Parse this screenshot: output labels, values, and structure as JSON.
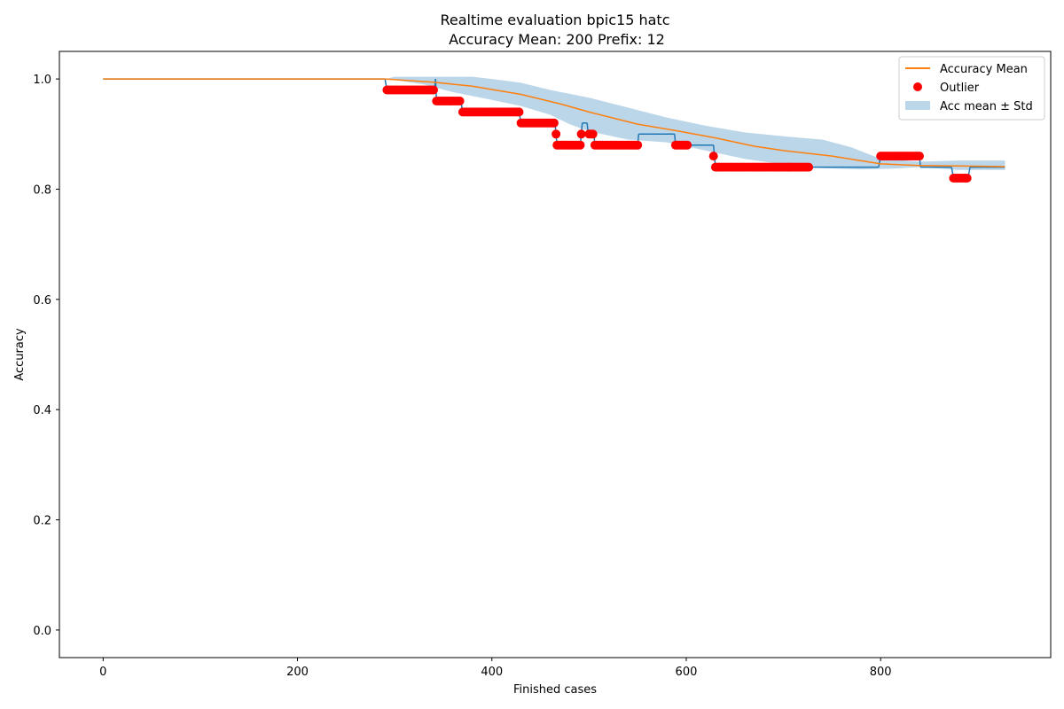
{
  "chart_data": {
    "type": "line",
    "title": "Realtime evaluation bpic15 hatc",
    "subtitle": "Accuracy Mean: 200 Prefix: 12",
    "xlabel": "Finished cases",
    "ylabel": "Accuracy",
    "xlim": [
      -45,
      975
    ],
    "ylim": [
      -0.05,
      1.05
    ],
    "xticks": [
      0,
      200,
      400,
      600,
      800
    ],
    "xtick_labels": [
      "0",
      "200",
      "400",
      "600",
      "800"
    ],
    "yticks": [
      0.0,
      0.2,
      0.4,
      0.6,
      0.8,
      1.0
    ],
    "ytick_labels": [
      "0.0",
      "0.2",
      "0.4",
      "0.6",
      "0.8",
      "1.0"
    ],
    "grid": false,
    "legend_position": "top-right",
    "colors": {
      "accuracy": "#1f77b4",
      "mean": "#ff7f0e",
      "outlier": "#ff0000",
      "band": "#1f77b4"
    },
    "series": [
      {
        "name": "",
        "kind": "step",
        "points": [
          [
            0,
            1.0
          ],
          [
            290,
            1.0
          ],
          [
            292,
            0.98
          ],
          [
            341,
            0.98
          ],
          [
            342,
            1.0
          ],
          [
            343,
            0.96
          ],
          [
            368,
            0.96
          ],
          [
            370,
            0.94
          ],
          [
            428,
            0.94
          ],
          [
            430,
            0.92
          ],
          [
            465,
            0.92
          ],
          [
            467,
            0.88
          ],
          [
            491,
            0.88
          ],
          [
            493,
            0.92
          ],
          [
            498,
            0.92
          ],
          [
            499,
            0.9
          ],
          [
            505,
            0.9
          ],
          [
            506,
            0.88
          ],
          [
            550,
            0.88
          ],
          [
            551,
            0.9
          ],
          [
            588,
            0.9
          ],
          [
            589,
            0.88
          ],
          [
            628,
            0.88
          ],
          [
            630,
            0.84
          ],
          [
            798,
            0.84
          ],
          [
            800,
            0.86
          ],
          [
            840,
            0.86
          ],
          [
            841,
            0.84
          ],
          [
            873,
            0.84
          ],
          [
            875,
            0.82
          ],
          [
            890,
            0.82
          ],
          [
            892,
            0.84
          ],
          [
            928,
            0.84
          ]
        ]
      },
      {
        "name": "Accuracy Mean",
        "kind": "line",
        "points": [
          [
            0,
            1.0
          ],
          [
            290,
            1.0
          ],
          [
            340,
            0.994
          ],
          [
            380,
            0.987
          ],
          [
            430,
            0.972
          ],
          [
            470,
            0.955
          ],
          [
            500,
            0.94
          ],
          [
            550,
            0.918
          ],
          [
            590,
            0.906
          ],
          [
            630,
            0.893
          ],
          [
            670,
            0.878
          ],
          [
            700,
            0.87
          ],
          [
            750,
            0.86
          ],
          [
            800,
            0.846
          ],
          [
            840,
            0.843
          ],
          [
            880,
            0.842
          ],
          [
            928,
            0.841
          ]
        ]
      },
      {
        "name": "Outlier",
        "kind": "scatter",
        "groups": [
          {
            "x": [
              292,
              341
            ],
            "y": 0.98,
            "step": 2
          },
          {
            "x": [
              343,
              368
            ],
            "y": 0.96,
            "step": 2
          },
          {
            "x": [
              370,
              428
            ],
            "y": 0.94,
            "step": 2
          },
          {
            "x": [
              430,
              465
            ],
            "y": 0.92,
            "step": 2
          },
          {
            "x": [
              466,
              466
            ],
            "y": 0.9,
            "step": 1
          },
          {
            "x": [
              467,
              491
            ],
            "y": 0.88,
            "step": 2
          },
          {
            "x": [
              492,
              492
            ],
            "y": 0.9,
            "step": 1
          },
          {
            "x": [
              500,
              505
            ],
            "y": 0.9,
            "step": 2
          },
          {
            "x": [
              506,
              550
            ],
            "y": 0.88,
            "step": 2
          },
          {
            "x": [
              589,
              601
            ],
            "y": 0.88,
            "step": 2
          },
          {
            "x": [
              628,
              628
            ],
            "y": 0.86,
            "step": 1
          },
          {
            "x": [
              630,
              726
            ],
            "y": 0.84,
            "step": 2
          },
          {
            "x": [
              800,
              840
            ],
            "y": 0.86,
            "step": 2
          },
          {
            "x": [
              875,
              890
            ],
            "y": 0.82,
            "step": 2
          }
        ]
      },
      {
        "name": "Acc mean ± Std",
        "kind": "band",
        "upper": [
          [
            290,
            1.0
          ],
          [
            300,
            1.004
          ],
          [
            340,
            1.004
          ],
          [
            380,
            1.004
          ],
          [
            400,
            1.0
          ],
          [
            430,
            0.993
          ],
          [
            460,
            0.98
          ],
          [
            500,
            0.966
          ],
          [
            540,
            0.948
          ],
          [
            580,
            0.93
          ],
          [
            620,
            0.915
          ],
          [
            660,
            0.903
          ],
          [
            700,
            0.896
          ],
          [
            740,
            0.89
          ],
          [
            770,
            0.876
          ],
          [
            800,
            0.855
          ],
          [
            840,
            0.85
          ],
          [
            880,
            0.852
          ],
          [
            928,
            0.852
          ]
        ],
        "lower": [
          [
            290,
            1.0
          ],
          [
            300,
            0.998
          ],
          [
            330,
            0.99
          ],
          [
            360,
            0.976
          ],
          [
            400,
            0.962
          ],
          [
            430,
            0.951
          ],
          [
            460,
            0.935
          ],
          [
            480,
            0.918
          ],
          [
            500,
            0.905
          ],
          [
            540,
            0.89
          ],
          [
            580,
            0.885
          ],
          [
            620,
            0.87
          ],
          [
            660,
            0.855
          ],
          [
            700,
            0.845
          ],
          [
            740,
            0.838
          ],
          [
            780,
            0.836
          ],
          [
            810,
            0.837
          ],
          [
            840,
            0.84
          ],
          [
            880,
            0.835
          ],
          [
            928,
            0.835
          ]
        ]
      }
    ]
  }
}
